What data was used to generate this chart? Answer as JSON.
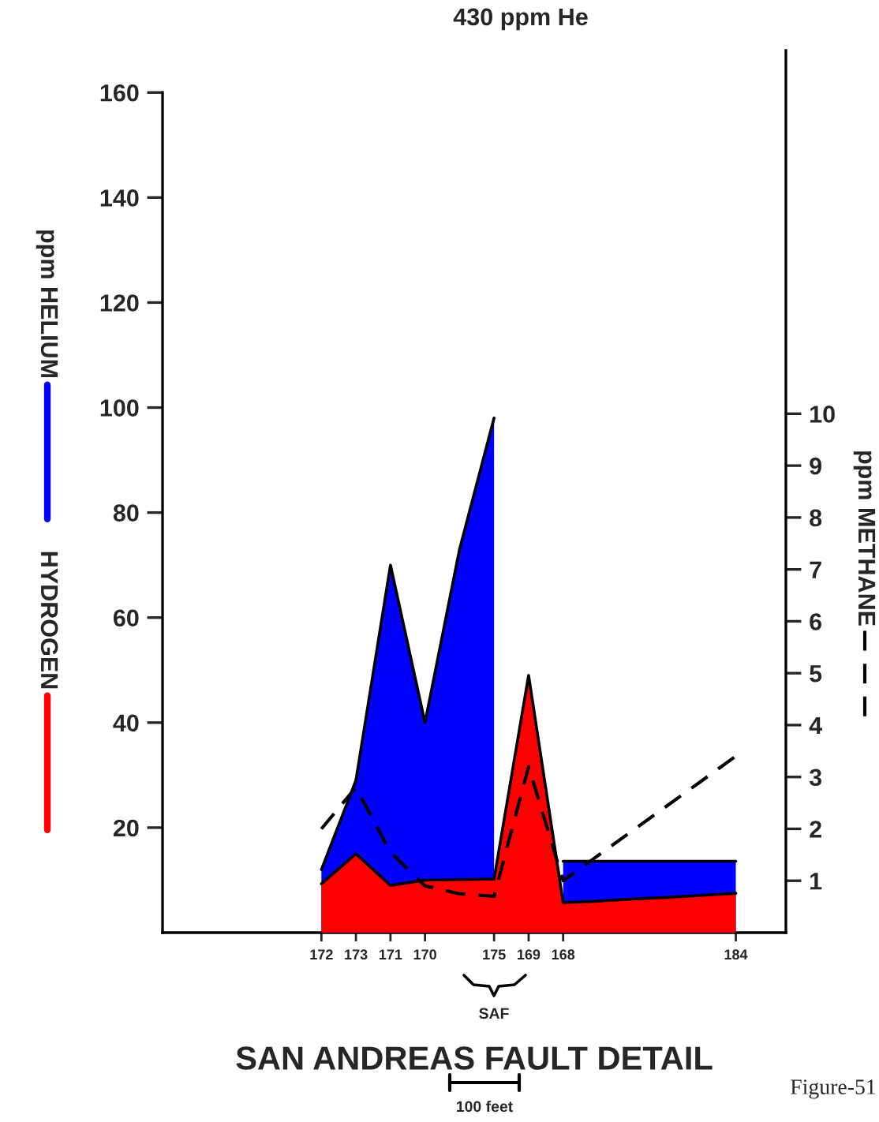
{
  "chart_data": {
    "type": "area",
    "xlabel": "SAN ANDREAS FAULT DETAIL",
    "ylabel": "ppm HELIUM",
    "y2label": "ppm METHANE",
    "annotations": [
      "HYDROGEN",
      "430 ppm He",
      "SAF",
      "100 feet",
      "Figure-51"
    ],
    "categories": [
      null,
      null,
      null,
      null,
      "172",
      "173",
      "171",
      "170",
      null,
      "175",
      "169",
      "168",
      null,
      null,
      null,
      null,
      "184"
    ],
    "series": [
      {
        "color": "#0000ff",
        "values": [
          null,
          null,
          null,
          null,
          12,
          29,
          70,
          40,
          73,
          98,
          null,
          13.6,
          13.6,
          13.6,
          13.6,
          13.6,
          13.6
        ]
      },
      {
        "color": "#ff0000",
        "values": [
          null,
          null,
          null,
          null,
          9.3,
          15,
          9,
          10,
          10.1,
          10.2,
          49,
          5.7,
          6.0,
          6.4,
          6.7,
          7.1,
          7.5
        ]
      },
      {
        "type": "line",
        "axis": "y2",
        "line_style": "dashed",
        "color": "#000000",
        "values": [
          null,
          null,
          null,
          null,
          2.0,
          2.8,
          1.55,
          0.9,
          0.75,
          0.7,
          3.2,
          1.0,
          1.48,
          1.96,
          2.44,
          2.92,
          3.4
        ]
      }
    ],
    "ylim": [
      0,
      168
    ],
    "yticks": [
      20,
      40,
      60,
      80,
      100,
      120,
      140,
      160
    ],
    "y2lim": [
      0,
      17
    ],
    "y2ticks": [
      1,
      2,
      3,
      4,
      5,
      6,
      7,
      8,
      9,
      10
    ],
    "grid": false,
    "marker": "none"
  }
}
